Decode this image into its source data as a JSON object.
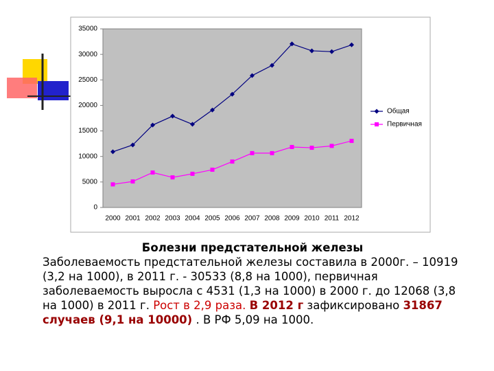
{
  "chart_data": {
    "type": "line",
    "categories": [
      "2000",
      "2001",
      "2002",
      "2003",
      "2004",
      "2005",
      "2006",
      "2007",
      "2008",
      "2009",
      "2010",
      "2011",
      "2012"
    ],
    "series": [
      {
        "name": "Общая",
        "color": "#000080",
        "marker": "diamond",
        "values": [
          10919,
          12250,
          16150,
          17900,
          16300,
          19100,
          22200,
          25850,
          27850,
          32050,
          30700,
          30533,
          31867
        ]
      },
      {
        "name": "Первичная",
        "color": "#ff00ff",
        "marker": "square",
        "values": [
          4531,
          5100,
          6850,
          5900,
          6600,
          7400,
          9000,
          10650,
          10650,
          11850,
          11700,
          12068,
          13050
        ]
      }
    ],
    "ylim": [
      0,
      35000
    ],
    "yticks": [
      0,
      5000,
      10000,
      15000,
      20000,
      25000,
      30000,
      35000
    ],
    "legend": "right",
    "grid": false
  },
  "text": {
    "title": "Болезни предстательной железы",
    "segments": [
      {
        "text": "Заболеваемость предстательной железы составила в 2000г. – 10919 (3,2 на 1000), в 2011 г. - 30533 (8,8 на 1000),  первичная заболеваемость выросла с 4531 (1,3 на 1000) в 2000 г. до 12068 (3,8 на 1000) в 2011 г. ",
        "color": "#000000",
        "bold": false
      },
      {
        "text": "Рост в 2,9 раза. ",
        "color": "#cc0000",
        "bold": false
      },
      {
        "text": "В 2012 г",
        "color": "#990000",
        "bold": true
      },
      {
        "text": " зафиксировано ",
        "color": "#000000",
        "bold": false
      },
      {
        "text": "31867 случаев (9,1 на 10000)",
        "color": "#990000",
        "bold": true
      },
      {
        "text": " . В РФ 5,09 на 1000.",
        "color": "#000000",
        "bold": false
      }
    ]
  }
}
